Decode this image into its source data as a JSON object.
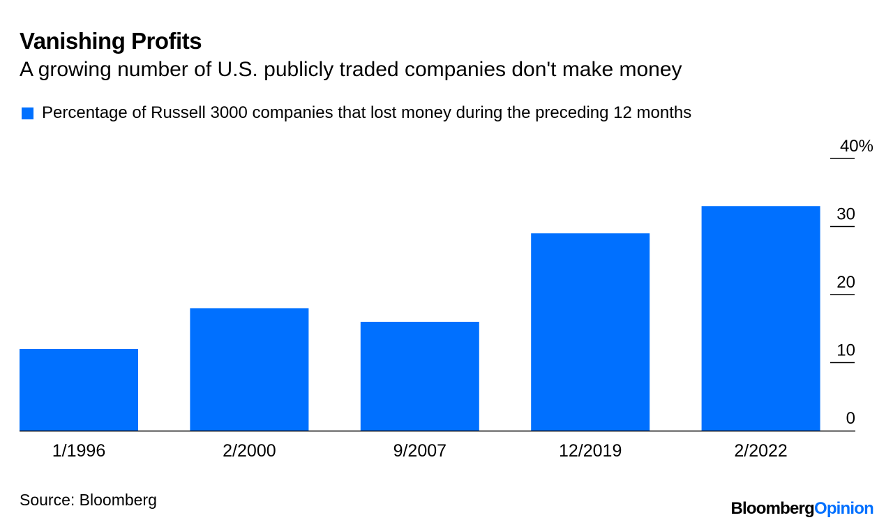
{
  "header": {
    "title": "Vanishing Profits",
    "subtitle": "A growing number of U.S. publicly traded companies don't make money"
  },
  "footer": {
    "source": "Source: Bloomberg",
    "logo_part1": "Bloomberg",
    "logo_part2": "Opinion"
  },
  "colors": {
    "bar": "#0070ff",
    "axis": "#000000"
  },
  "chart_data": {
    "type": "bar",
    "title": "Vanishing Profits",
    "subtitle": "A growing number of U.S. publicly traded companies don't make money",
    "legend": [
      {
        "label": "Percentage of Russell 3000 companies that lost money during the preceding 12 months",
        "color": "#0070ff"
      }
    ],
    "legend_position": "top-left",
    "categories": [
      "1/1996",
      "2/2000",
      "9/2007",
      "12/2019",
      "2/2022"
    ],
    "series": [
      {
        "name": "Percentage of Russell 3000 companies that lost money during the preceding 12 months",
        "values": [
          12,
          18,
          16,
          29,
          33
        ]
      }
    ],
    "xlabel": "",
    "ylabel": "",
    "ylim": [
      0,
      40
    ],
    "yticks": [
      0,
      10,
      20,
      30,
      40
    ],
    "ytick_labels": [
      "0",
      "10",
      "20",
      "30",
      "40%"
    ],
    "y_axis_side": "right",
    "grid": false
  }
}
